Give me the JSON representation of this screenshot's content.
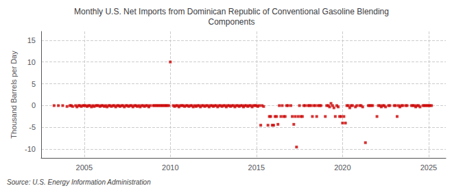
{
  "chart_data": {
    "type": "scatter",
    "title": "Monthly U.S. Net Imports from Dominican Republic of Conventional Gasoline Blending\nComponents",
    "ylabel": "Thousand Barrels per Day",
    "annotations": [
      "Source: U.S. Energy Information Administration"
    ],
    "color": "#cc0000",
    "marker": "square",
    "grid": true,
    "xlim": [
      2002.5,
      2026.0
    ],
    "ylim": [
      -12,
      17
    ],
    "xticks": [
      2005,
      2010,
      2015,
      2020,
      2025
    ],
    "yticks": [
      -10,
      -5,
      0,
      5,
      10,
      15
    ],
    "x": [
      2003.25,
      2003.5,
      2003.75,
      2004.0,
      2004.17,
      2004.25,
      2004.33,
      2004.5,
      2004.58,
      2004.67,
      2004.75,
      2004.83,
      2004.92,
      2005.0,
      2005.08,
      2005.17,
      2005.25,
      2005.33,
      2005.42,
      2005.5,
      2005.58,
      2005.67,
      2005.75,
      2005.83,
      2005.92,
      2006.0,
      2006.08,
      2006.17,
      2006.25,
      2006.33,
      2006.42,
      2006.5,
      2006.58,
      2006.67,
      2006.75,
      2006.83,
      2006.92,
      2007.0,
      2007.08,
      2007.17,
      2007.25,
      2007.33,
      2007.42,
      2007.5,
      2007.58,
      2007.67,
      2007.75,
      2007.83,
      2007.92,
      2008.0,
      2008.08,
      2008.17,
      2008.25,
      2008.33,
      2008.42,
      2008.5,
      2008.58,
      2008.67,
      2008.75,
      2008.83,
      2009.0,
      2009.08,
      2009.17,
      2009.25,
      2009.33,
      2009.42,
      2009.5,
      2009.58,
      2009.67,
      2009.75,
      2009.83,
      2009.92,
      2010.0,
      2010.17,
      2010.25,
      2010.33,
      2010.42,
      2010.5,
      2010.58,
      2010.67,
      2010.75,
      2010.83,
      2010.92,
      2011.0,
      2011.08,
      2011.17,
      2011.25,
      2011.33,
      2011.42,
      2011.5,
      2011.58,
      2011.67,
      2011.75,
      2011.83,
      2011.92,
      2012.0,
      2012.08,
      2012.17,
      2012.25,
      2012.33,
      2012.42,
      2012.5,
      2012.58,
      2012.67,
      2012.75,
      2012.83,
      2012.92,
      2013.0,
      2013.08,
      2013.17,
      2013.25,
      2013.33,
      2013.42,
      2013.5,
      2013.58,
      2013.67,
      2013.75,
      2013.83,
      2013.92,
      2014.0,
      2014.08,
      2014.17,
      2014.25,
      2014.33,
      2014.42,
      2014.5,
      2014.58,
      2014.67,
      2014.75,
      2014.83,
      2014.92,
      2015.0,
      2015.08,
      2015.17,
      2015.25,
      2015.33,
      2015.42,
      2015.67,
      2015.75,
      2015.83,
      2015.92,
      2016.0,
      2016.08,
      2016.17,
      2016.25,
      2016.33,
      2016.42,
      2016.5,
      2016.58,
      2016.67,
      2016.75,
      2016.83,
      2017.0,
      2017.08,
      2017.17,
      2017.25,
      2017.33,
      2017.42,
      2017.5,
      2017.58,
      2017.67,
      2017.75,
      2017.83,
      2018.0,
      2018.08,
      2018.17,
      2018.25,
      2018.33,
      2018.42,
      2018.5,
      2018.58,
      2018.67,
      2018.75,
      2019.0,
      2019.08,
      2019.17,
      2019.25,
      2019.33,
      2019.42,
      2019.5,
      2019.58,
      2019.67,
      2019.75,
      2019.83,
      2019.92,
      2020.0,
      2020.08,
      2020.17,
      2020.25,
      2020.33,
      2020.42,
      2020.5,
      2020.58,
      2020.75,
      2020.83,
      2021.0,
      2021.08,
      2021.17,
      2021.33,
      2021.5,
      2021.58,
      2021.67,
      2021.75,
      2022.0,
      2022.08,
      2022.17,
      2022.25,
      2022.33,
      2022.42,
      2022.5,
      2022.67,
      2022.75,
      2023.0,
      2023.08,
      2023.17,
      2023.25,
      2023.33,
      2023.42,
      2023.5,
      2023.67,
      2023.75,
      2024.0,
      2024.08,
      2024.17,
      2024.25,
      2024.33,
      2024.42,
      2024.5,
      2024.67,
      2024.75,
      2024.83,
      2024.92,
      2025.0,
      2025.08,
      2025.17
    ],
    "values": [
      0,
      0,
      0,
      -0.2,
      0,
      0,
      -0.2,
      0,
      -0.3,
      0,
      0,
      -0.2,
      0,
      0,
      0,
      -0.2,
      0,
      0,
      -0.3,
      0,
      -0.2,
      0,
      0,
      0,
      -0.2,
      0,
      0,
      -0.2,
      0,
      -0.3,
      0,
      0,
      -0.2,
      0,
      0,
      -0.3,
      0,
      0,
      -0.2,
      0,
      0,
      -0.3,
      0,
      0,
      -0.2,
      0,
      0,
      -0.3,
      0,
      0,
      -0.2,
      0,
      -0.3,
      0,
      0,
      -0.2,
      0,
      0,
      -0.3,
      0,
      0,
      0,
      0,
      0,
      0,
      0,
      0,
      0,
      0,
      0,
      0,
      0,
      10.0,
      0,
      -0.2,
      0,
      0,
      -0.3,
      0,
      0,
      0,
      -0.2,
      0,
      0,
      -0.2,
      0,
      0,
      -0.3,
      0,
      -0.2,
      0,
      0,
      -0.3,
      0,
      0,
      -0.2,
      0,
      0,
      -0.3,
      0,
      0,
      -0.2,
      0,
      0,
      -0.3,
      0,
      0,
      -0.2,
      0,
      0,
      -0.3,
      0,
      0,
      -0.2,
      0,
      0,
      -0.3,
      0,
      0,
      -0.2,
      0,
      0,
      -0.3,
      0,
      0,
      -0.2,
      0,
      0,
      -0.3,
      0,
      0,
      0,
      -0.2,
      0,
      -4.5,
      0,
      -0.2,
      -4.5,
      -2.5,
      -2.5,
      -4.5,
      -4.5,
      -2.5,
      -2.5,
      -4.3,
      0,
      -2.5,
      0,
      -2.5,
      -2.5,
      0,
      0,
      0,
      -2.5,
      -4.3,
      -2.5,
      -9.5,
      -2.5,
      0,
      -2.5,
      -2.5,
      0,
      0,
      0,
      0,
      0,
      -2.5,
      0,
      0,
      -2.5,
      0,
      0,
      0,
      -2.5,
      0,
      0,
      -0.3,
      0.5,
      0,
      -0.5,
      -2.5,
      0,
      -0.3,
      -2.5,
      -2.5,
      -4.0,
      -2.5,
      -4.0,
      0,
      0,
      -0.5,
      0,
      0,
      -0.3,
      0,
      0,
      0,
      -0.3,
      -8.5,
      0,
      0,
      0,
      0,
      -2.5,
      0,
      0,
      -0.3,
      0,
      0,
      -0.3,
      0,
      0,
      0,
      0,
      -2.5,
      0,
      -0.3,
      0,
      0,
      0,
      0,
      0,
      0,
      0,
      -0.3,
      0,
      0,
      -0.3,
      0,
      0,
      0,
      0,
      0,
      0,
      0
    ]
  }
}
